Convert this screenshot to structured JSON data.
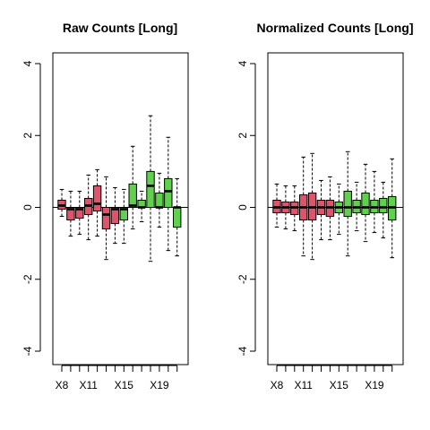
{
  "colors": {
    "red": "#df536b",
    "green": "#61d04f",
    "ink": "#000000"
  },
  "chart_data": [
    {
      "type": "box",
      "title": "Raw Counts [Long]",
      "xlabel": "",
      "ylabel": "",
      "ylim": [
        -4,
        4
      ],
      "yticks": [
        -4,
        -2,
        0,
        2,
        4
      ],
      "ytick_labels": [
        "-4",
        "-2",
        "0",
        "2",
        "4"
      ],
      "xtick_labels": [
        "X8",
        "X11",
        "X15",
        "X19"
      ],
      "xtick_label_positions": [
        1,
        4,
        8,
        12
      ],
      "reference_line": 0,
      "boxes": [
        {
          "position": 1,
          "whisker_low": -0.25,
          "q1": -0.05,
          "median": 0.05,
          "q3": 0.2,
          "whisker_high": 0.5,
          "color": "red"
        },
        {
          "position": 2,
          "whisker_low": -0.8,
          "q1": -0.35,
          "median": -0.05,
          "q3": 0.0,
          "whisker_high": 0.45,
          "color": "red"
        },
        {
          "position": 3,
          "whisker_low": -0.75,
          "q1": -0.3,
          "median": -0.05,
          "q3": 0.0,
          "whisker_high": 0.45,
          "color": "red"
        },
        {
          "position": 4,
          "whisker_low": -0.9,
          "q1": -0.2,
          "median": 0.05,
          "q3": 0.25,
          "whisker_high": 0.9,
          "color": "red"
        },
        {
          "position": 5,
          "whisker_low": -0.8,
          "q1": -0.1,
          "median": 0.1,
          "q3": 0.6,
          "whisker_high": 1.05,
          "color": "red"
        },
        {
          "position": 6,
          "whisker_low": -1.45,
          "q1": -0.6,
          "median": -0.2,
          "q3": 0.0,
          "whisker_high": 0.85,
          "color": "red"
        },
        {
          "position": 7,
          "whisker_low": -1.0,
          "q1": -0.45,
          "median": -0.05,
          "q3": 0.0,
          "whisker_high": 0.55,
          "color": "red"
        },
        {
          "position": 8,
          "whisker_low": -1.0,
          "q1": -0.35,
          "median": -0.05,
          "q3": 0.0,
          "whisker_high": 0.5,
          "color": "green"
        },
        {
          "position": 9,
          "whisker_low": -0.6,
          "q1": 0.0,
          "median": 0.05,
          "q3": 0.65,
          "whisker_high": 1.7,
          "color": "green"
        },
        {
          "position": 10,
          "whisker_low": -0.4,
          "q1": 0.0,
          "median": 0.0,
          "q3": 0.2,
          "whisker_high": 0.45,
          "color": "green"
        },
        {
          "position": 11,
          "whisker_low": -1.5,
          "q1": 0.0,
          "median": 0.6,
          "q3": 1.0,
          "whisker_high": 2.55,
          "color": "green"
        },
        {
          "position": 12,
          "whisker_low": -0.55,
          "q1": 0.0,
          "median": 0.0,
          "q3": 0.4,
          "whisker_high": 0.95,
          "color": "green"
        },
        {
          "position": 13,
          "whisker_low": -1.2,
          "q1": 0.0,
          "median": 0.45,
          "q3": 0.8,
          "whisker_high": 1.95,
          "color": "green"
        },
        {
          "position": 14,
          "whisker_low": -1.35,
          "q1": -0.55,
          "median": 0.0,
          "q3": 0.0,
          "whisker_high": 0.8,
          "color": "green"
        }
      ]
    },
    {
      "type": "box",
      "title": "Normalized Counts [Long]",
      "xlabel": "",
      "ylabel": "",
      "ylim": [
        -4,
        4
      ],
      "yticks": [
        -4,
        -2,
        0,
        2,
        4
      ],
      "ytick_labels": [
        "-4",
        "-2",
        "0",
        "2",
        "4"
      ],
      "xtick_labels": [
        "X8",
        "X11",
        "X15",
        "X19"
      ],
      "xtick_label_positions": [
        1,
        4,
        8,
        12
      ],
      "reference_line": 0,
      "boxes": [
        {
          "position": 1,
          "whisker_low": -0.55,
          "q1": -0.15,
          "median": 0.0,
          "q3": 0.2,
          "whisker_high": 0.65,
          "color": "red"
        },
        {
          "position": 2,
          "whisker_low": -0.6,
          "q1": -0.15,
          "median": 0.0,
          "q3": 0.15,
          "whisker_high": 0.6,
          "color": "red"
        },
        {
          "position": 3,
          "whisker_low": -0.65,
          "q1": -0.2,
          "median": 0.0,
          "q3": 0.15,
          "whisker_high": 0.6,
          "color": "red"
        },
        {
          "position": 4,
          "whisker_low": -1.35,
          "q1": -0.35,
          "median": 0.0,
          "q3": 0.35,
          "whisker_high": 1.4,
          "color": "red"
        },
        {
          "position": 5,
          "whisker_low": -1.45,
          "q1": -0.35,
          "median": 0.0,
          "q3": 0.4,
          "whisker_high": 1.5,
          "color": "red"
        },
        {
          "position": 6,
          "whisker_low": -0.9,
          "q1": -0.2,
          "median": 0.0,
          "q3": 0.2,
          "whisker_high": 0.75,
          "color": "red"
        },
        {
          "position": 7,
          "whisker_low": -0.9,
          "q1": -0.25,
          "median": 0.0,
          "q3": 0.2,
          "whisker_high": 0.85,
          "color": "red"
        },
        {
          "position": 8,
          "whisker_low": -0.75,
          "q1": -0.15,
          "median": 0.0,
          "q3": 0.15,
          "whisker_high": 0.65,
          "color": "green"
        },
        {
          "position": 9,
          "whisker_low": -1.35,
          "q1": -0.25,
          "median": 0.0,
          "q3": 0.45,
          "whisker_high": 1.55,
          "color": "green"
        },
        {
          "position": 10,
          "whisker_low": -0.65,
          "q1": -0.15,
          "median": 0.0,
          "q3": 0.2,
          "whisker_high": 0.7,
          "color": "green"
        },
        {
          "position": 11,
          "whisker_low": -0.95,
          "q1": -0.2,
          "median": 0.0,
          "q3": 0.4,
          "whisker_high": 1.2,
          "color": "green"
        },
        {
          "position": 12,
          "whisker_low": -0.7,
          "q1": -0.15,
          "median": 0.0,
          "q3": 0.2,
          "whisker_high": 1.0,
          "color": "green"
        },
        {
          "position": 13,
          "whisker_low": -0.85,
          "q1": -0.15,
          "median": 0.0,
          "q3": 0.25,
          "whisker_high": 0.7,
          "color": "green"
        },
        {
          "position": 14,
          "whisker_low": -1.4,
          "q1": -0.35,
          "median": 0.0,
          "q3": 0.3,
          "whisker_high": 1.35,
          "color": "green"
        }
      ]
    }
  ]
}
